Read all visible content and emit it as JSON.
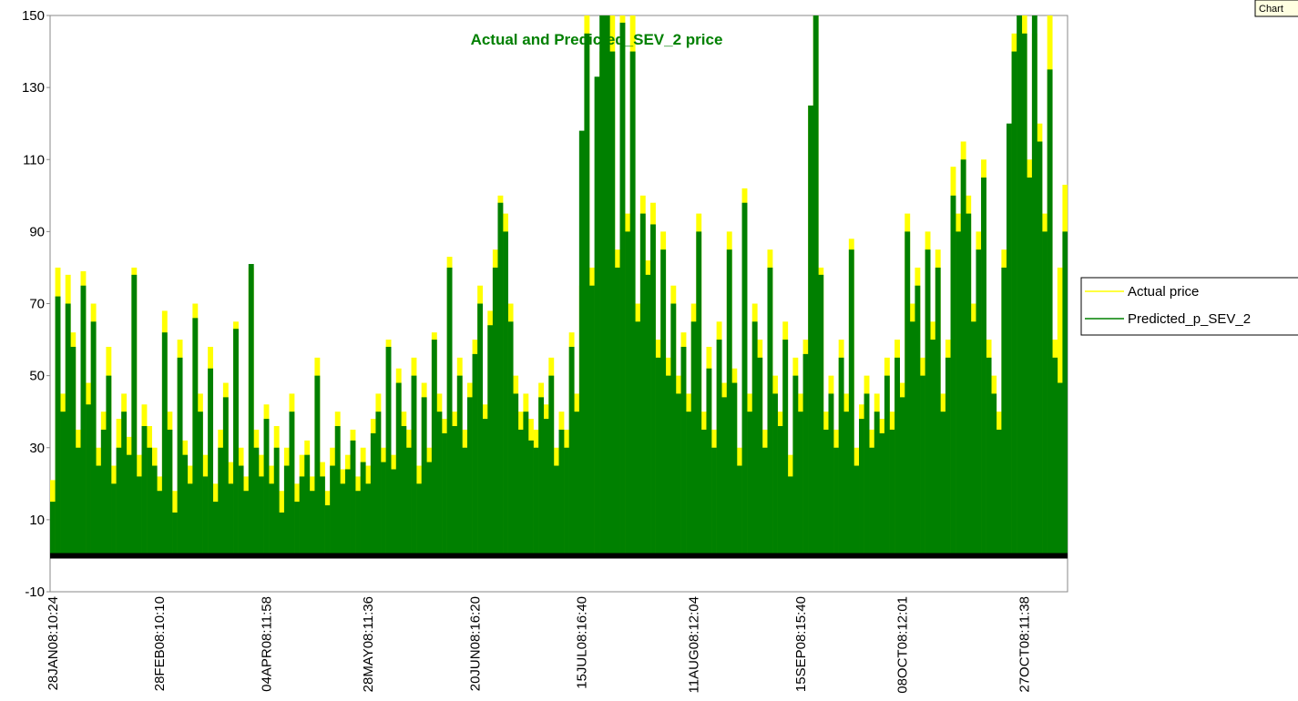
{
  "chart_data": {
    "type": "bar",
    "title": "Actual and Predicted_SEV_2 price",
    "button": "Chart",
    "categories": [
      "28JAN08:10:24",
      null,
      null,
      null,
      null,
      null,
      null,
      null,
      null,
      null,
      null,
      null,
      null,
      null,
      null,
      null,
      null,
      null,
      null,
      null,
      null,
      "28FEB08:10:10",
      null,
      null,
      null,
      null,
      null,
      null,
      null,
      null,
      null,
      null,
      null,
      null,
      null,
      null,
      null,
      null,
      null,
      null,
      null,
      null,
      "04APR08:11:58",
      null,
      null,
      null,
      null,
      null,
      null,
      null,
      null,
      null,
      null,
      null,
      null,
      null,
      null,
      null,
      null,
      null,
      null,
      null,
      "28MAY08:11:36",
      null,
      null,
      null,
      null,
      null,
      null,
      null,
      null,
      null,
      null,
      null,
      null,
      null,
      null,
      null,
      null,
      null,
      null,
      null,
      null,
      "20JUN08:16:20",
      null,
      null,
      null,
      null,
      null,
      null,
      null,
      null,
      null,
      null,
      null,
      null,
      null,
      null,
      null,
      null,
      null,
      null,
      null,
      null,
      "15JUL08:16:40",
      null,
      null,
      null,
      null,
      null,
      null,
      null,
      null,
      null,
      null,
      null,
      null,
      null,
      null,
      null,
      null,
      null,
      null,
      null,
      null,
      null,
      "11AUG08:12:04",
      null,
      null,
      null,
      null,
      null,
      null,
      null,
      null,
      null,
      null,
      null,
      null,
      null,
      null,
      null,
      null,
      null,
      null,
      null,
      null,
      "15SEP08:15:40",
      null,
      null,
      null,
      null,
      null,
      null,
      null,
      null,
      null,
      null,
      null,
      null,
      null,
      null,
      null,
      null,
      null,
      null,
      null,
      "08OCT08:12:01",
      null,
      null,
      null,
      null,
      null,
      null,
      null,
      null,
      null,
      null,
      null,
      null,
      null,
      null,
      null,
      null,
      null,
      null,
      null,
      null,
      null,
      null,
      null,
      "27OCT08:11:38",
      null,
      null,
      null,
      null,
      null,
      null,
      null,
      null
    ],
    "series": [
      {
        "name": "Actual price",
        "color": "#ffff00",
        "values": [
          21,
          80,
          45,
          78,
          62,
          35,
          79,
          48,
          70,
          30,
          40,
          58,
          25,
          38,
          45,
          33,
          80,
          28,
          42,
          36,
          30,
          22,
          68,
          40,
          18,
          60,
          32,
          25,
          70,
          45,
          28,
          58,
          20,
          35,
          48,
          26,
          65,
          30,
          22,
          80,
          35,
          28,
          42,
          25,
          36,
          18,
          30,
          45,
          20,
          28,
          32,
          22,
          55,
          26,
          18,
          30,
          40,
          24,
          28,
          35,
          22,
          30,
          25,
          38,
          45,
          30,
          60,
          28,
          52,
          40,
          35,
          55,
          25,
          48,
          30,
          62,
          45,
          38,
          83,
          40,
          55,
          35,
          48,
          60,
          75,
          42,
          68,
          85,
          100,
          95,
          70,
          50,
          40,
          45,
          38,
          35,
          48,
          42,
          55,
          30,
          40,
          35,
          62,
          45,
          75,
          150,
          80,
          65,
          140,
          120,
          150,
          85,
          150,
          95,
          150,
          70,
          100,
          82,
          98,
          60,
          90,
          55,
          75,
          50,
          62,
          45,
          70,
          95,
          40,
          58,
          35,
          65,
          48,
          90,
          52,
          30,
          102,
          45,
          70,
          60,
          35,
          85,
          50,
          40,
          65,
          28,
          55,
          45,
          60,
          125,
          150,
          80,
          40,
          50,
          35,
          60,
          45,
          88,
          30,
          42,
          50,
          35,
          45,
          38,
          55,
          40,
          60,
          48,
          95,
          70,
          80,
          55,
          90,
          65,
          85,
          45,
          60,
          108,
          95,
          115,
          100,
          70,
          90,
          110,
          60,
          50,
          40,
          85,
          110,
          145,
          130,
          150,
          110,
          145,
          120,
          95,
          150,
          60,
          80,
          103
        ]
      },
      {
        "name": "Predicted_p_SEV_2",
        "color": "#008000",
        "values": [
          15,
          72,
          40,
          70,
          58,
          30,
          75,
          42,
          65,
          25,
          35,
          50,
          20,
          30,
          40,
          28,
          78,
          22,
          36,
          30,
          25,
          18,
          62,
          35,
          12,
          55,
          28,
          20,
          66,
          40,
          22,
          52,
          15,
          30,
          44,
          20,
          63,
          25,
          18,
          81,
          30,
          22,
          38,
          20,
          30,
          12,
          25,
          40,
          15,
          22,
          28,
          18,
          50,
          22,
          14,
          25,
          36,
          20,
          24,
          32,
          18,
          26,
          20,
          34,
          40,
          26,
          58,
          24,
          48,
          36,
          30,
          50,
          20,
          44,
          26,
          60,
          40,
          34,
          80,
          36,
          50,
          30,
          44,
          56,
          70,
          38,
          64,
          80,
          98,
          90,
          65,
          45,
          35,
          40,
          32,
          30,
          44,
          38,
          50,
          25,
          35,
          30,
          58,
          40,
          118,
          145,
          75,
          133,
          150,
          150,
          140,
          80,
          148,
          90,
          140,
          65,
          95,
          78,
          92,
          55,
          85,
          50,
          70,
          45,
          58,
          40,
          65,
          90,
          35,
          52,
          30,
          60,
          44,
          85,
          48,
          25,
          98,
          40,
          65,
          55,
          30,
          80,
          45,
          36,
          60,
          22,
          50,
          40,
          56,
          125,
          152,
          78,
          35,
          45,
          30,
          55,
          40,
          85,
          25,
          38,
          45,
          30,
          40,
          34,
          50,
          35,
          55,
          44,
          90,
          65,
          75,
          50,
          85,
          60,
          80,
          40,
          55,
          100,
          90,
          110,
          95,
          65,
          85,
          105,
          55,
          45,
          35,
          80,
          120,
          140,
          150,
          145,
          105,
          152,
          115,
          90,
          135,
          55,
          48,
          90
        ]
      }
    ],
    "ylim": [
      -10,
      150
    ],
    "yticks": [
      -10,
      10,
      30,
      50,
      70,
      90,
      110,
      130,
      150
    ],
    "legend": "right"
  }
}
